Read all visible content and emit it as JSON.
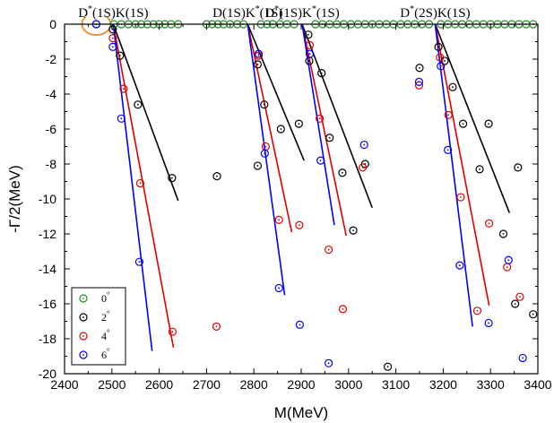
{
  "chart_data": {
    "type": "scatter",
    "xlabel": "M(MeV)",
    "ylabel": "-Γ/2(MeV)",
    "xlim": [
      2400,
      3400
    ],
    "ylim": [
      -20,
      0
    ],
    "x_ticks": [
      "2400",
      "2500",
      "2600",
      "2700",
      "2800",
      "2900",
      "3000",
      "3100",
      "3200",
      "3300",
      "3400"
    ],
    "y_ticks": [
      "0",
      "-2",
      "-4",
      "-6",
      "-8",
      "-10",
      "-12",
      "-14",
      "-16",
      "-18",
      "-20"
    ],
    "thresholds": [
      {
        "label_main": "D",
        "label_sup": "*",
        "label_rest": "(1S)",
        "label_main2": "K",
        "label_sup2": "",
        "label_rest2": "(1S)",
        "x": 2503
      },
      {
        "label_main": "D",
        "label_sup": "",
        "label_rest": "(1S)",
        "label_main2": "K",
        "label_sup2": "*",
        "label_rest2": "(1S)",
        "x": 2787
      },
      {
        "label_main": "D",
        "label_sup": "*",
        "label_rest": "(1S)",
        "label_main2": "K",
        "label_sup2": "*",
        "label_rest2": "(1S)",
        "x": 2902
      },
      {
        "label_main": "D",
        "label_sup": "*",
        "label_rest": "(2S)",
        "label_main2": "K",
        "label_sup2": "",
        "label_rest2": "(1S)",
        "x": 3183
      }
    ],
    "highlighted_point": {
      "x": 2467,
      "y": 0
    },
    "series": [
      {
        "name": "0°",
        "color": "#228B22",
        "points": [
          [
            2467,
            0
          ],
          [
            2504,
            0
          ],
          [
            2520,
            0
          ],
          [
            2535,
            0
          ],
          [
            2550,
            0
          ],
          [
            2562,
            0
          ],
          [
            2575,
            0
          ],
          [
            2588,
            0
          ],
          [
            2600,
            0
          ],
          [
            2612,
            0
          ],
          [
            2625,
            0
          ],
          [
            2640,
            0
          ],
          [
            2700,
            0
          ],
          [
            2712,
            0
          ],
          [
            2724,
            0
          ],
          [
            2736,
            0
          ],
          [
            2750,
            0
          ],
          [
            2765,
            0
          ],
          [
            2778,
            0
          ],
          [
            2815,
            0
          ],
          [
            2828,
            0
          ],
          [
            2840,
            0
          ],
          [
            2855,
            0
          ],
          [
            2870,
            0
          ],
          [
            2885,
            0
          ],
          [
            2930,
            0
          ],
          [
            2945,
            0
          ],
          [
            2960,
            0
          ],
          [
            2975,
            0
          ],
          [
            2990,
            0
          ],
          [
            3005,
            0
          ],
          [
            3020,
            0
          ],
          [
            3035,
            0
          ],
          [
            3050,
            0
          ],
          [
            3065,
            0
          ],
          [
            3080,
            0
          ],
          [
            3095,
            0
          ],
          [
            3110,
            0
          ],
          [
            3125,
            0
          ],
          [
            3140,
            0
          ],
          [
            3155,
            0
          ],
          [
            3170,
            0
          ],
          [
            3195,
            0
          ],
          [
            3210,
            0
          ],
          [
            3225,
            0
          ],
          [
            3240,
            0
          ],
          [
            3255,
            0
          ],
          [
            3270,
            0
          ],
          [
            3285,
            0
          ],
          [
            3300,
            0
          ],
          [
            3315,
            0
          ],
          [
            3330,
            0
          ],
          [
            3345,
            0
          ],
          [
            3360,
            0
          ],
          [
            3375,
            0
          ],
          [
            3390,
            0
          ]
        ]
      },
      {
        "name": "2°",
        "color": "#000000",
        "points": [
          [
            2502,
            -0.3
          ],
          [
            2517,
            -1.8
          ],
          [
            2555,
            -4.6
          ],
          [
            2627,
            -8.8
          ],
          [
            2722,
            -8.7
          ],
          [
            2808,
            -2.3
          ],
          [
            2822,
            -4.6
          ],
          [
            2857,
            -6.0
          ],
          [
            2895,
            -5.7
          ],
          [
            2808,
            -8.1
          ],
          [
            2915,
            -0.6
          ],
          [
            2917,
            -2.1
          ],
          [
            2943,
            -2.8
          ],
          [
            2960,
            -6.5
          ],
          [
            2987,
            -8.5
          ],
          [
            3010,
            -11.8
          ],
          [
            3035,
            -8.0
          ],
          [
            3083,
            -19.6
          ],
          [
            3150,
            -2.5
          ],
          [
            3190,
            -1.3
          ],
          [
            3203,
            -2.1
          ],
          [
            3220,
            -3.6
          ],
          [
            3242,
            -5.7
          ],
          [
            3277,
            -8.3
          ],
          [
            3296,
            -5.7
          ],
          [
            3327,
            -12.0
          ],
          [
            3358,
            -8.2
          ],
          [
            3352,
            -16.0
          ],
          [
            3390,
            -16.6
          ]
        ]
      },
      {
        "name": "4°",
        "color": "#E00000",
        "points": [
          [
            2502,
            -0.8
          ],
          [
            2525,
            -3.7
          ],
          [
            2560,
            -9.1
          ],
          [
            2628,
            -17.6
          ],
          [
            2721,
            -17.3
          ],
          [
            2810,
            -1.8
          ],
          [
            2825,
            -7.0
          ],
          [
            2853,
            -11.2
          ],
          [
            2896,
            -11.5
          ],
          [
            2918,
            -1.2
          ],
          [
            2939,
            -5.4
          ],
          [
            2958,
            -12.9
          ],
          [
            2988,
            -16.3
          ],
          [
            3030,
            -8.2
          ],
          [
            3149,
            -3.5
          ],
          [
            3193,
            -1.9
          ],
          [
            3211,
            -5.2
          ],
          [
            3237,
            -9.9
          ],
          [
            3272,
            -16.4
          ],
          [
            3297,
            -11.4
          ],
          [
            3335,
            -13.9
          ],
          [
            3362,
            -15.6
          ]
        ]
      },
      {
        "name": "6°",
        "color": "#0000FF",
        "points": [
          [
            2467,
            0
          ],
          [
            2502,
            -1.3
          ],
          [
            2520,
            -5.4
          ],
          [
            2558,
            -13.6
          ],
          [
            2810,
            -1.7
          ],
          [
            2823,
            -7.4
          ],
          [
            2853,
            -15.1
          ],
          [
            2897,
            -17.2
          ],
          [
            2918,
            -1.7
          ],
          [
            2941,
            -7.8
          ],
          [
            2958,
            -19.4
          ],
          [
            3033,
            -6.9
          ],
          [
            3149,
            -3.3
          ],
          [
            3195,
            -2.4
          ],
          [
            3210,
            -7.2
          ],
          [
            3235,
            -13.8
          ],
          [
            3296,
            -17.1
          ],
          [
            3338,
            -13.5
          ],
          [
            3368,
            -19.1
          ]
        ]
      }
    ],
    "lines": [
      {
        "color": "#000000",
        "x1": 2503,
        "y1": 0,
        "x2": 2640,
        "y2": -10.1
      },
      {
        "color": "#E00000",
        "x1": 2503,
        "y1": 0,
        "x2": 2630,
        "y2": -18.5
      },
      {
        "color": "#0000FF",
        "x1": 2503,
        "y1": 0,
        "x2": 2585,
        "y2": -18.7
      },
      {
        "color": "#000000",
        "x1": 2787,
        "y1": 0,
        "x2": 2906,
        "y2": -7.8
      },
      {
        "color": "#E00000",
        "x1": 2787,
        "y1": 0,
        "x2": 2880,
        "y2": -11.9
      },
      {
        "color": "#0000FF",
        "x1": 2787,
        "y1": 0,
        "x2": 2865,
        "y2": -15.5
      },
      {
        "color": "#000000",
        "x1": 2902,
        "y1": 0,
        "x2": 3050,
        "y2": -10.5
      },
      {
        "color": "#E00000",
        "x1": 2902,
        "y1": 0,
        "x2": 2995,
        "y2": -12.1
      },
      {
        "color": "#0000FF",
        "x1": 2902,
        "y1": 0,
        "x2": 2970,
        "y2": -11.5
      },
      {
        "color": "#000000",
        "x1": 3183,
        "y1": 0,
        "x2": 3340,
        "y2": -10.8
      },
      {
        "color": "#E00000",
        "x1": 3183,
        "y1": 0,
        "x2": 3297,
        "y2": -16.1
      },
      {
        "color": "#0000FF",
        "x1": 3183,
        "y1": 0,
        "x2": 3262,
        "y2": -17.3
      }
    ],
    "legend": {
      "placement": "bottom-left",
      "entries": [
        {
          "label": "0",
          "sup": "°",
          "color": "#228B22"
        },
        {
          "label": "2",
          "sup": "°",
          "color": "#000000"
        },
        {
          "label": "4",
          "sup": "°",
          "color": "#E00000"
        },
        {
          "label": "6",
          "sup": "°",
          "color": "#0000FF"
        }
      ]
    }
  }
}
